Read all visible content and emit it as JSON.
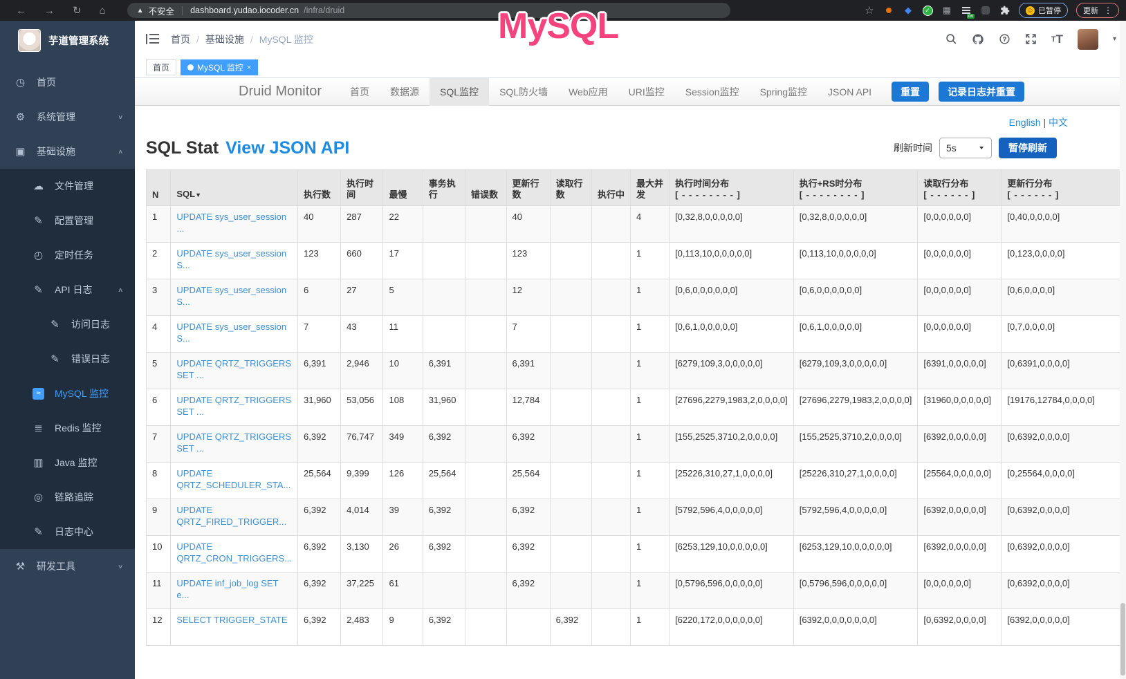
{
  "browser": {
    "security_warning": "不安全",
    "url_host": "dashboard.yudao.iocoder.cn",
    "url_path": "/infra/druid",
    "paused_badge": "已暂停",
    "update_button": "更新"
  },
  "annotation": {
    "text": "MySQL"
  },
  "colors": {
    "accent_blue": "#409eff",
    "druid_button_blue": "#1c78d5",
    "annotation_pink": "#f5437e"
  },
  "sidebar": {
    "title": "芋道管理系统",
    "items": [
      {
        "name": "home",
        "label": "首页",
        "icon": "dashboard-icon",
        "level": 0,
        "dark": false
      },
      {
        "name": "system-management",
        "label": "系统管理",
        "icon": "gear-icon",
        "level": 0,
        "dark": false,
        "chevron": "down"
      },
      {
        "name": "infrastructure",
        "label": "基础设施",
        "icon": "infra-icon",
        "level": 0,
        "dark": false,
        "chevron": "up"
      },
      {
        "name": "file-management",
        "label": "文件管理",
        "icon": "cloud-upload-icon",
        "level": 1,
        "dark": true
      },
      {
        "name": "config-management",
        "label": "配置管理",
        "icon": "edit-icon",
        "level": 1,
        "dark": true
      },
      {
        "name": "scheduled-tasks",
        "label": "定时任务",
        "icon": "timer-icon",
        "level": 1,
        "dark": true
      },
      {
        "name": "api-logs",
        "label": "API 日志",
        "icon": "log-icon",
        "level": 1,
        "dark": true,
        "chevron": "up"
      },
      {
        "name": "access-log",
        "label": "访问日志",
        "icon": "log-icon",
        "level": 2,
        "dark": true
      },
      {
        "name": "error-log",
        "label": "错误日志",
        "icon": "log-icon",
        "level": 2,
        "dark": true
      },
      {
        "name": "mysql-monitor",
        "label": "MySQL 监控",
        "icon": "mysql-monitor-icon",
        "level": 1,
        "dark": true,
        "active": true
      },
      {
        "name": "redis-monitor",
        "label": "Redis 监控",
        "icon": "layers-icon",
        "level": 1,
        "dark": true
      },
      {
        "name": "java-monitor",
        "label": "Java 监控",
        "icon": "java-monitor-icon",
        "level": 1,
        "dark": true
      },
      {
        "name": "tracing",
        "label": "链路追踪",
        "icon": "eye-icon",
        "level": 1,
        "dark": true
      },
      {
        "name": "log-center",
        "label": "日志中心",
        "icon": "log-icon",
        "level": 1,
        "dark": true
      },
      {
        "name": "dev-tools",
        "label": "研发工具",
        "icon": "toolbox-icon",
        "level": 0,
        "dark": false,
        "chevron": "down"
      }
    ]
  },
  "header": {
    "breadcrumb": [
      "首页",
      "基础设施",
      "MySQL 监控"
    ],
    "breadcrumb_separator": "/"
  },
  "tags": [
    {
      "label": "首页",
      "active": false,
      "closable": false
    },
    {
      "label": "MySQL 监控",
      "active": true,
      "closable": true
    }
  ],
  "druid": {
    "brand": "Druid Monitor",
    "nav": [
      {
        "name": "home",
        "label": "首页"
      },
      {
        "name": "datasource",
        "label": "数据源"
      },
      {
        "name": "sql-monitor",
        "label": "SQL监控",
        "active": true
      },
      {
        "name": "sql-firewall",
        "label": "SQL防火墙"
      },
      {
        "name": "web-app",
        "label": "Web应用"
      },
      {
        "name": "uri-monitor",
        "label": "URI监控"
      },
      {
        "name": "session-monitor",
        "label": "Session监控"
      },
      {
        "name": "spring-monitor",
        "label": "Spring监控"
      },
      {
        "name": "json-api",
        "label": "JSON API"
      }
    ],
    "reset_button": "重置",
    "log_reset_button": "记录日志并重置",
    "lang_en": "English",
    "lang_separator": "|",
    "lang_zh": "中文",
    "title": "SQL Stat",
    "title_link": "View JSON API",
    "refresh_label": "刷新时间",
    "refresh_value": "5s",
    "pause_button": "暂停刷新"
  },
  "table": {
    "columns": [
      {
        "name": "n",
        "label": "N"
      },
      {
        "name": "sql",
        "label": "SQL",
        "sort": "▼"
      },
      {
        "name": "exec-count",
        "label": "执行数"
      },
      {
        "name": "exec-time",
        "label": "执行时间"
      },
      {
        "name": "slowest",
        "label": "最慢"
      },
      {
        "name": "tx-exec",
        "label": "事务执行"
      },
      {
        "name": "error-count",
        "label": "错误数"
      },
      {
        "name": "update-rows",
        "label": "更新行数"
      },
      {
        "name": "fetch-rows",
        "label": "读取行数"
      },
      {
        "name": "running",
        "label": "执行中"
      },
      {
        "name": "max-concurrent",
        "label": "最大并发"
      },
      {
        "name": "exec-time-dist",
        "label": "执行时间分布",
        "sub": "[ - - - - - - - - ]"
      },
      {
        "name": "exec-rs-dist",
        "label": "执行+RS时分布",
        "sub": "[ - - - - - - - - ]"
      },
      {
        "name": "fetch-row-dist",
        "label": "读取行分布",
        "sub": "[ - - - - - - ]"
      },
      {
        "name": "update-row-dist",
        "label": "更新行分布",
        "sub": "[ - - - - - - ]"
      }
    ],
    "rows": [
      [
        "1",
        "UPDATE sys_user_session ...",
        "40",
        "287",
        "22",
        "",
        "",
        "40",
        "",
        "",
        "4",
        "[0,32,8,0,0,0,0,0]",
        "[0,32,8,0,0,0,0,0]",
        "[0,0,0,0,0,0]",
        "[0,40,0,0,0,0]"
      ],
      [
        "2",
        "UPDATE sys_user_session S...",
        "123",
        "660",
        "17",
        "",
        "",
        "123",
        "",
        "",
        "1",
        "[0,113,10,0,0,0,0,0]",
        "[0,113,10,0,0,0,0,0]",
        "[0,0,0,0,0,0]",
        "[0,123,0,0,0,0]"
      ],
      [
        "3",
        "UPDATE sys_user_session S...",
        "6",
        "27",
        "5",
        "",
        "",
        "12",
        "",
        "",
        "1",
        "[0,6,0,0,0,0,0,0]",
        "[0,6,0,0,0,0,0,0]",
        "[0,0,0,0,0,0]",
        "[0,6,0,0,0,0]"
      ],
      [
        "4",
        "UPDATE sys_user_session S...",
        "7",
        "43",
        "11",
        "",
        "",
        "7",
        "",
        "",
        "1",
        "[0,6,1,0,0,0,0,0]",
        "[0,6,1,0,0,0,0,0]",
        "[0,0,0,0,0,0]",
        "[0,7,0,0,0,0]"
      ],
      [
        "5",
        "UPDATE QRTZ_TRIGGERS SET ...",
        "6,391",
        "2,946",
        "10",
        "6,391",
        "",
        "6,391",
        "",
        "",
        "1",
        "[6279,109,3,0,0,0,0,0]",
        "[6279,109,3,0,0,0,0,0]",
        "[6391,0,0,0,0,0]",
        "[0,6391,0,0,0,0]"
      ],
      [
        "6",
        "UPDATE QRTZ_TRIGGERS SET ...",
        "31,960",
        "53,056",
        "108",
        "31,960",
        "",
        "12,784",
        "",
        "",
        "1",
        "[27696,2279,1983,2,0,0,0,0]",
        "[27696,2279,1983,2,0,0,0,0]",
        "[31960,0,0,0,0,0]",
        "[19176,12784,0,0,0,0]"
      ],
      [
        "7",
        "UPDATE QRTZ_TRIGGERS SET ...",
        "6,392",
        "76,747",
        "349",
        "6,392",
        "",
        "6,392",
        "",
        "",
        "1",
        "[155,2525,3710,2,0,0,0,0]",
        "[155,2525,3710,2,0,0,0,0]",
        "[6392,0,0,0,0,0]",
        "[0,6392,0,0,0,0]"
      ],
      [
        "8",
        "UPDATE QRTZ_SCHEDULER_STA...",
        "25,564",
        "9,399",
        "126",
        "25,564",
        "",
        "25,564",
        "",
        "",
        "1",
        "[25226,310,27,1,0,0,0,0]",
        "[25226,310,27,1,0,0,0,0]",
        "[25564,0,0,0,0,0]",
        "[0,25564,0,0,0,0]"
      ],
      [
        "9",
        "UPDATE QRTZ_FIRED_TRIGGER...",
        "6,392",
        "4,014",
        "39",
        "6,392",
        "",
        "6,392",
        "",
        "",
        "1",
        "[5792,596,4,0,0,0,0,0]",
        "[5792,596,4,0,0,0,0,0]",
        "[6392,0,0,0,0,0]",
        "[0,6392,0,0,0,0]"
      ],
      [
        "10",
        "UPDATE QRTZ_CRON_TRIGGERS...",
        "6,392",
        "3,130",
        "26",
        "6,392",
        "",
        "6,392",
        "",
        "",
        "1",
        "[6253,129,10,0,0,0,0,0]",
        "[6253,129,10,0,0,0,0,0]",
        "[6392,0,0,0,0,0]",
        "[0,6392,0,0,0,0]"
      ],
      [
        "11",
        "UPDATE inf_job_log SET e...",
        "6,392",
        "37,225",
        "61",
        "",
        "",
        "6,392",
        "",
        "",
        "1",
        "[0,5796,596,0,0,0,0,0]",
        "[0,5796,596,0,0,0,0,0]",
        "[0,0,0,0,0,0]",
        "[0,6392,0,0,0,0]"
      ],
      [
        "12",
        "SELECT TRIGGER_STATE",
        "6,392",
        "2,483",
        "9",
        "6,392",
        "",
        "",
        "6,392",
        "",
        "1",
        "[6220,172,0,0,0,0,0,0]",
        "[6392,0,0,0,0,0,0,0]",
        "[0,6392,0,0,0,0]",
        "[6392,0,0,0,0,0]"
      ]
    ]
  }
}
